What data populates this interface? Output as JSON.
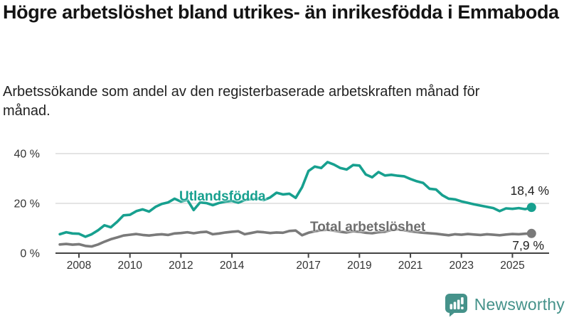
{
  "header": {
    "title": "Högre arbetslöshet bland utrikes- än inrikesfödda i Emmaboda",
    "subtitle": "Arbetssökande som andel av den registerbaserade arbetskraften månad för månad."
  },
  "chart_data": {
    "type": "line",
    "title": "Högre arbetslöshet bland utrikes- än inrikesfödda i Emmaboda",
    "xlabel": "",
    "ylabel": "",
    "x_unit": "decimal-year",
    "xlim": [
      2007.1,
      2026.3
    ],
    "ylim": [
      0,
      44
    ],
    "grid": "horizontal",
    "legend_position": "inline-labels",
    "y_axis": {
      "ticks": [
        {
          "value": 0,
          "label": "0 %"
        },
        {
          "value": 20,
          "label": "20 %"
        },
        {
          "value": 40,
          "label": "40 %"
        }
      ]
    },
    "x_axis": {
      "ticks": [
        {
          "value": 2008,
          "label": "2008"
        },
        {
          "value": 2010,
          "label": "2010"
        },
        {
          "value": 2012,
          "label": "2012"
        },
        {
          "value": 2014,
          "label": "2014"
        },
        {
          "value": 2017,
          "label": "2017"
        },
        {
          "value": 2019,
          "label": "2019"
        },
        {
          "value": 2021,
          "label": "2021"
        },
        {
          "value": 2023,
          "label": "2023"
        },
        {
          "value": 2025,
          "label": "2025"
        }
      ]
    },
    "x": [
      2007.25,
      2007.5,
      2007.75,
      2008,
      2008.25,
      2008.5,
      2008.75,
      2009,
      2009.25,
      2009.5,
      2009.75,
      2010,
      2010.25,
      2010.5,
      2010.75,
      2011,
      2011.25,
      2011.5,
      2011.75,
      2012,
      2012.25,
      2012.5,
      2012.75,
      2013,
      2013.25,
      2013.5,
      2013.75,
      2014,
      2014.25,
      2014.5,
      2014.75,
      2015,
      2015.25,
      2015.5,
      2015.75,
      2016,
      2016.25,
      2016.5,
      2016.75,
      2017,
      2017.25,
      2017.5,
      2017.75,
      2018,
      2018.25,
      2018.5,
      2018.75,
      2019,
      2019.25,
      2019.5,
      2019.75,
      2020,
      2020.25,
      2020.5,
      2020.75,
      2021,
      2021.25,
      2021.5,
      2021.75,
      2022,
      2022.25,
      2022.5,
      2022.75,
      2023,
      2023.25,
      2023.5,
      2023.75,
      2024,
      2024.25,
      2024.5,
      2024.75,
      2025,
      2025.25,
      2025.5,
      2025.75
    ],
    "series": [
      {
        "name": "Utlandsfödda",
        "color": "#17a08f",
        "end_value": 18.4,
        "end_label": "18,4 %",
        "values": [
          7.6,
          8.4,
          7.9,
          7.8,
          6.6,
          7.6,
          9.2,
          11.2,
          10.4,
          12.6,
          15.2,
          15.4,
          16.9,
          17.6,
          16.7,
          18.6,
          19.8,
          20.4,
          21.9,
          20.7,
          21.4,
          17.3,
          20.4,
          20.1,
          19.3,
          20.2,
          20.7,
          21.0,
          20.3,
          21.3,
          21.7,
          22.0,
          21.3,
          22.4,
          24.3,
          23.6,
          23.9,
          22.2,
          26.5,
          33.0,
          34.8,
          34.2,
          36.6,
          35.6,
          34.2,
          33.6,
          35.4,
          35.2,
          31.6,
          30.5,
          32.6,
          31.2,
          31.5,
          31.1,
          30.9,
          29.8,
          28.9,
          28.2,
          25.9,
          25.6,
          23.3,
          21.9,
          21.6,
          20.8,
          20.2,
          19.6,
          19.1,
          18.6,
          18.1,
          16.9,
          18.0,
          17.8,
          18.1,
          17.7,
          18.4
        ]
      },
      {
        "name": "Total arbetslöshet",
        "color": "#7a7a7a",
        "end_value": 7.9,
        "end_label": "7,9 %",
        "values": [
          3.5,
          3.7,
          3.4,
          3.6,
          2.9,
          2.7,
          3.5,
          4.6,
          5.6,
          6.3,
          7.1,
          7.4,
          7.7,
          7.3,
          7.1,
          7.4,
          7.6,
          7.3,
          7.9,
          8.1,
          8.4,
          8.0,
          8.4,
          8.6,
          7.6,
          7.9,
          8.3,
          8.6,
          8.8,
          7.6,
          8.1,
          8.6,
          8.4,
          8.1,
          8.3,
          8.2,
          8.9,
          9.1,
          7.2,
          8.2,
          8.8,
          9.2,
          9.4,
          9.0,
          8.6,
          8.3,
          8.8,
          8.6,
          8.2,
          8.0,
          8.4,
          8.6,
          9.3,
          9.6,
          9.2,
          8.8,
          8.5,
          8.2,
          8.0,
          7.8,
          7.5,
          7.2,
          7.6,
          7.4,
          7.7,
          7.5,
          7.3,
          7.6,
          7.4,
          7.2,
          7.5,
          7.7,
          7.6,
          7.8,
          7.9
        ]
      }
    ]
  },
  "footer": {
    "brand": "Newsworthy",
    "brand_color": "#45928a"
  }
}
